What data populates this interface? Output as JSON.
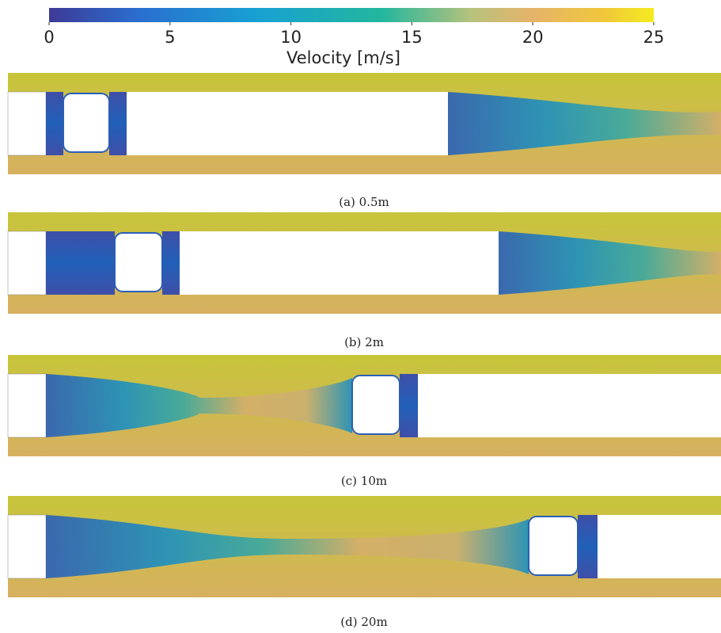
{
  "colorbar": {
    "label": "Velocity [m/s]",
    "lim": [
      0,
      25
    ],
    "ticks": [
      0,
      5,
      10,
      15,
      20,
      25
    ]
  },
  "panels": [
    {
      "caption": "(a) 0.5m"
    },
    {
      "caption": "(b) 2m"
    },
    {
      "caption": "(c) 10m"
    },
    {
      "caption": "(d) 20m"
    }
  ]
}
